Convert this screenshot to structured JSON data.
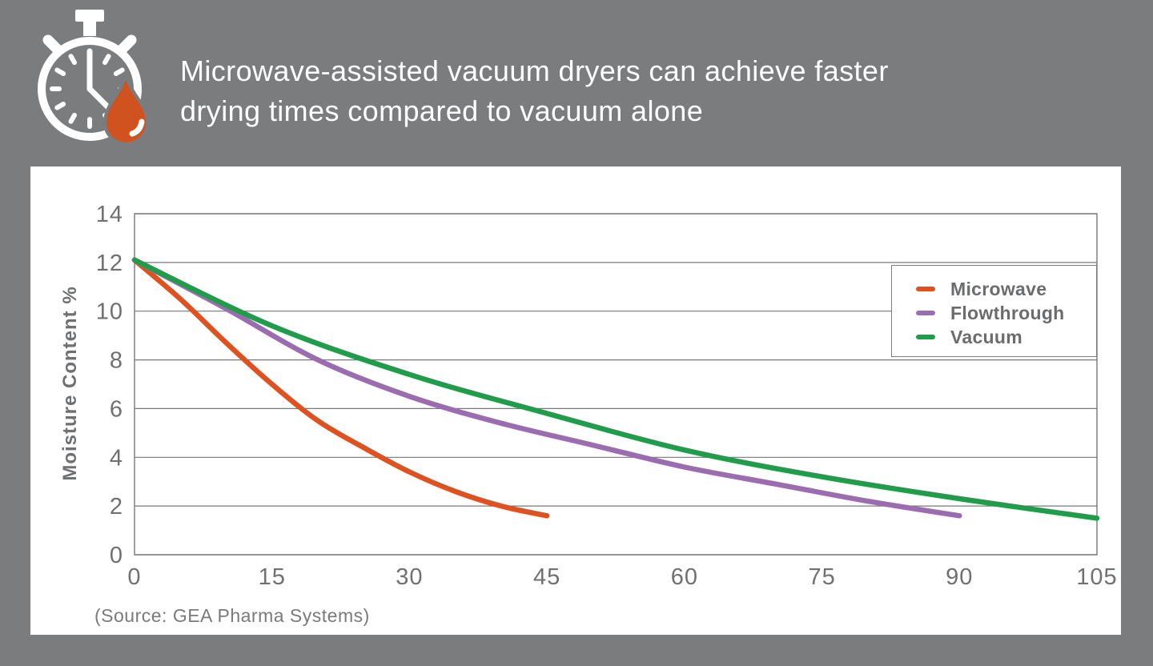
{
  "header": {
    "title_line1": "Microwave-assisted vacuum dryers can achieve faster",
    "title_line2": "drying times compared to vacuum alone",
    "icon": "stopwatch-droplet-icon"
  },
  "colors": {
    "background": "#7B7C7E",
    "panel": "#FFFFFF",
    "title_text": "#FFFFFF",
    "axis_text": "#6F7072",
    "legend_text": "#6B6C6E",
    "grid_line": "#77787A",
    "microwave": "#DE5120",
    "flowthrough": "#9C6CB0",
    "vacuum": "#209C4A",
    "droplet": "#D0521E"
  },
  "chart_data": {
    "type": "line",
    "title": "",
    "xlabel": "",
    "ylabel": "Moisture Content %",
    "xlim": [
      0,
      105
    ],
    "ylim": [
      0,
      14
    ],
    "xticks": [
      0,
      15,
      30,
      45,
      60,
      75,
      90,
      105
    ],
    "yticks": [
      0,
      2,
      4,
      6,
      8,
      10,
      12,
      14
    ],
    "grid": "horizontal",
    "legend_position": "top-right",
    "series": [
      {
        "name": "Microwave",
        "color": "#DE5120",
        "points": [
          [
            0,
            12.1
          ],
          [
            5,
            10.5
          ],
          [
            10,
            8.7
          ],
          [
            15,
            7.0
          ],
          [
            20,
            5.5
          ],
          [
            25,
            4.4
          ],
          [
            30,
            3.4
          ],
          [
            35,
            2.6
          ],
          [
            40,
            2.0
          ],
          [
            45,
            1.6
          ]
        ]
      },
      {
        "name": "Flowthrough",
        "color": "#9C6CB0",
        "points": [
          [
            0,
            12.1
          ],
          [
            10,
            10.1
          ],
          [
            20,
            8.0
          ],
          [
            30,
            6.5
          ],
          [
            40,
            5.4
          ],
          [
            50,
            4.5
          ],
          [
            60,
            3.6
          ],
          [
            70,
            2.9
          ],
          [
            80,
            2.2
          ],
          [
            90,
            1.6
          ]
        ]
      },
      {
        "name": "Vacuum",
        "color": "#209C4A",
        "points": [
          [
            0,
            12.1
          ],
          [
            15,
            9.4
          ],
          [
            30,
            7.4
          ],
          [
            45,
            5.8
          ],
          [
            60,
            4.3
          ],
          [
            75,
            3.2
          ],
          [
            90,
            2.3
          ],
          [
            105,
            1.5
          ]
        ]
      }
    ],
    "source_note": "(Source: GEA Pharma Systems)"
  }
}
